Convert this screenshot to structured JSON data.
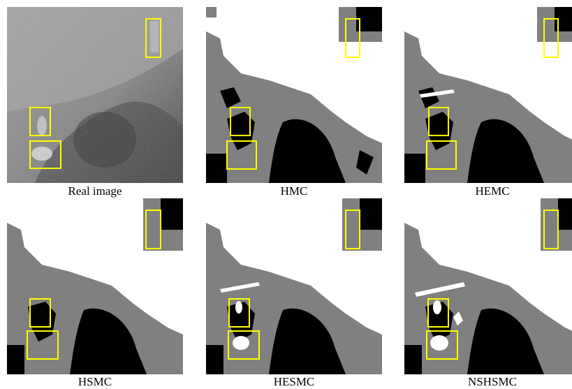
{
  "panels": [
    {
      "id": "real",
      "caption": "Real image"
    },
    {
      "id": "hmc",
      "caption": "HMC"
    },
    {
      "id": "hemc",
      "caption": "HEMC"
    },
    {
      "id": "hsmc",
      "caption": "HSMC"
    },
    {
      "id": "hesmc",
      "caption": "HESMC"
    },
    {
      "id": "nshsmc",
      "caption": "NSHSMC"
    }
  ],
  "colors": {
    "class_white": "#ffffff",
    "class_gray": "#808080",
    "class_black": "#000000",
    "highlight_box": "#ffff00"
  }
}
